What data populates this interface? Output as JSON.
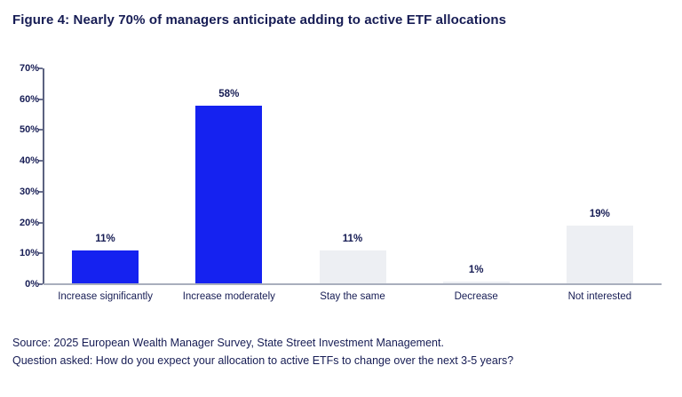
{
  "title": "Figure 4: Nearly 70% of managers anticipate adding to active ETF allocations",
  "chart_data": {
    "type": "bar",
    "categories": [
      "Increase significantly",
      "Increase moderately",
      "Stay the same",
      "Decrease",
      "Not interested"
    ],
    "values": [
      11,
      58,
      11,
      1,
      19
    ],
    "value_labels": [
      "11%",
      "58%",
      "11%",
      "1%",
      "19%"
    ],
    "bar_colors": [
      "#1522F0",
      "#1522F0",
      "#EDEFF3",
      "#EDEFF3",
      "#EDEFF3"
    ],
    "title": "Figure 4: Nearly 70% of managers anticipate adding to active ETF allocations",
    "xlabel": "",
    "ylabel": "",
    "ylim": [
      0,
      70
    ],
    "y_tick_step": 10,
    "y_tick_labels": [
      "0%",
      "10%",
      "20%",
      "30%",
      "40%",
      "50%",
      "60%",
      "70%"
    ],
    "grid": false,
    "legend": "none"
  },
  "colors": {
    "accent_blue": "#1522F0",
    "bar_gray": "#EDEFF3",
    "text_navy": "#161C54",
    "axis_line": "#5B6280",
    "baseline": "#A9AFBD"
  },
  "footer": {
    "source": "Source: 2025 European Wealth Manager Survey, State Street Investment Management.",
    "question": "Question asked: How do you expect your allocation to active ETFs to change over the next 3-5 years?"
  }
}
